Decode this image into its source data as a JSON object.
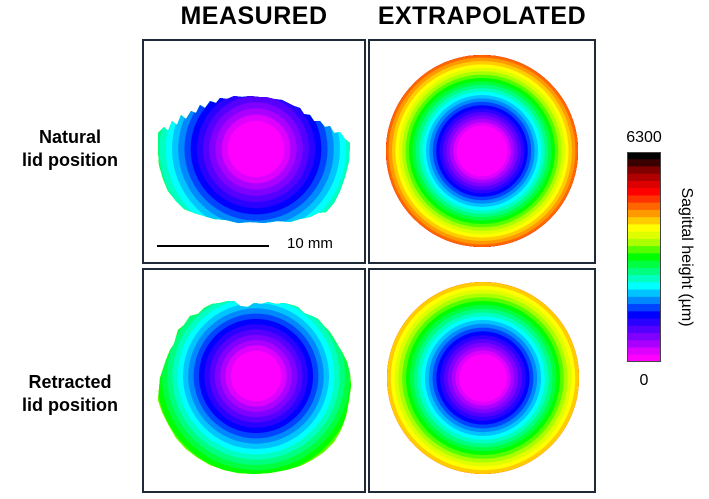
{
  "columns": {
    "measured": "MEASURED",
    "extrapolated": "EXTRAPOLATED"
  },
  "rows": {
    "natural": {
      "line1": "Natural",
      "line2": "lid position"
    },
    "retracted": {
      "line1": "Retracted",
      "line2": "lid position"
    }
  },
  "scale_bar": {
    "label": "10 mm",
    "length_mm": 10
  },
  "colorbar": {
    "max_label": "6300",
    "min_label": "0",
    "title": "Sagittal height  (µm)",
    "colors": [
      "#ff00ff",
      "#dd00ff",
      "#aa00ff",
      "#7f00ff",
      "#5500ff",
      "#2a00ff",
      "#0000ff",
      "#0044ff",
      "#0088ff",
      "#00c4ff",
      "#00ffff",
      "#00ffc0",
      "#00ff80",
      "#00ff40",
      "#00ff00",
      "#55ff00",
      "#aaff00",
      "#dfff00",
      "#ffff00",
      "#ffcc00",
      "#ff9900",
      "#ff6600",
      "#ff3300",
      "#ff0000",
      "#dd0000",
      "#b00000",
      "#800000",
      "#3a0000",
      "#000000"
    ]
  }
}
